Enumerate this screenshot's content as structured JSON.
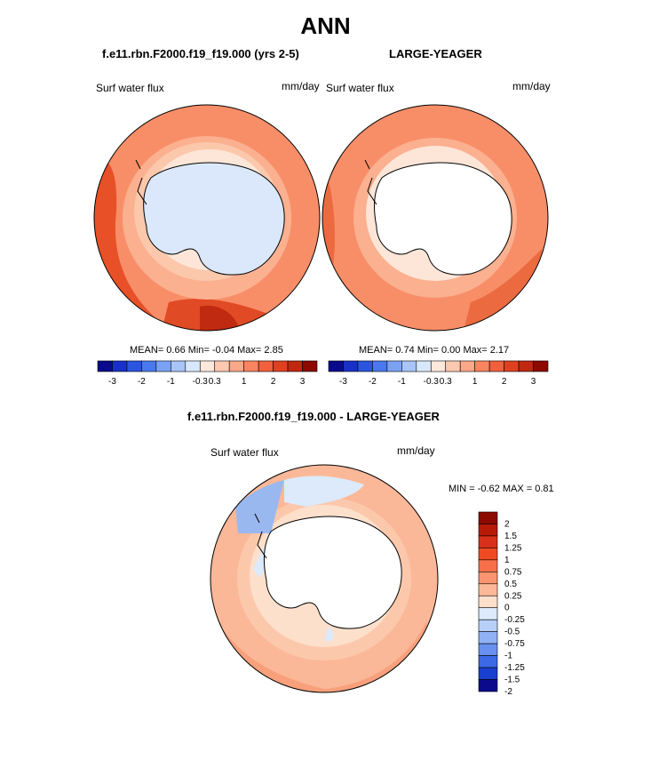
{
  "main_title": "ANN",
  "panel_left": {
    "title": "f.e11.rbn.F2000.f19_f19.000 (yrs 2-5)",
    "variable": "Surf water flux",
    "units": "mm/day",
    "stats": {
      "mean_label": "MEAN=",
      "mean": "0.66",
      "min_label": "Min=",
      "min": "-0.04",
      "max_label": "Max=",
      "max": "2.85"
    }
  },
  "panel_right": {
    "title": "LARGE-YEAGER",
    "variable": "Surf water flux",
    "units": "mm/day",
    "stats": {
      "mean_label": "MEAN=",
      "mean": "0.74",
      "min_label": "Min=",
      "min": "0.00",
      "max_label": "Max=",
      "max": "2.17"
    }
  },
  "panel_diff": {
    "title": "f.e11.rbn.F2000.f19_f19.000 - LARGE-YEAGER",
    "variable": "Surf water flux",
    "units": "mm/day",
    "minmax": "MIN =  -0.62 MAX =   0.81"
  },
  "colorbar_top": {
    "colors": [
      "#0a0a8c",
      "#1930c8",
      "#2a55e0",
      "#4a78ee",
      "#7aa2f4",
      "#a8c4f8",
      "#d8e8fc",
      "#fde8dc",
      "#fcc8b0",
      "#fba888",
      "#f88460",
      "#f0603c",
      "#e04020",
      "#c02810",
      "#8c0a00"
    ],
    "labels": [
      "-3",
      "-2",
      "-1",
      "-0.3",
      "0.3",
      "1",
      "2",
      "3"
    ]
  },
  "colorbar_diff": {
    "colors": [
      "#8c0a00",
      "#b81a08",
      "#d8301a",
      "#f04a22",
      "#f8704a",
      "#fa9470",
      "#fcb898",
      "#fde0cc",
      "#dceafc",
      "#b8d0f8",
      "#90b2f4",
      "#6890ee",
      "#3c68e6",
      "#1a40d0",
      "#0a0a8c"
    ],
    "labels": [
      "2",
      "1.5",
      "1.25",
      "1",
      "0.75",
      "0.5",
      "0.25",
      "0",
      "-0.25",
      "-0.5",
      "-0.75",
      "-1",
      "-1.25",
      "-1.5",
      "-2"
    ]
  }
}
